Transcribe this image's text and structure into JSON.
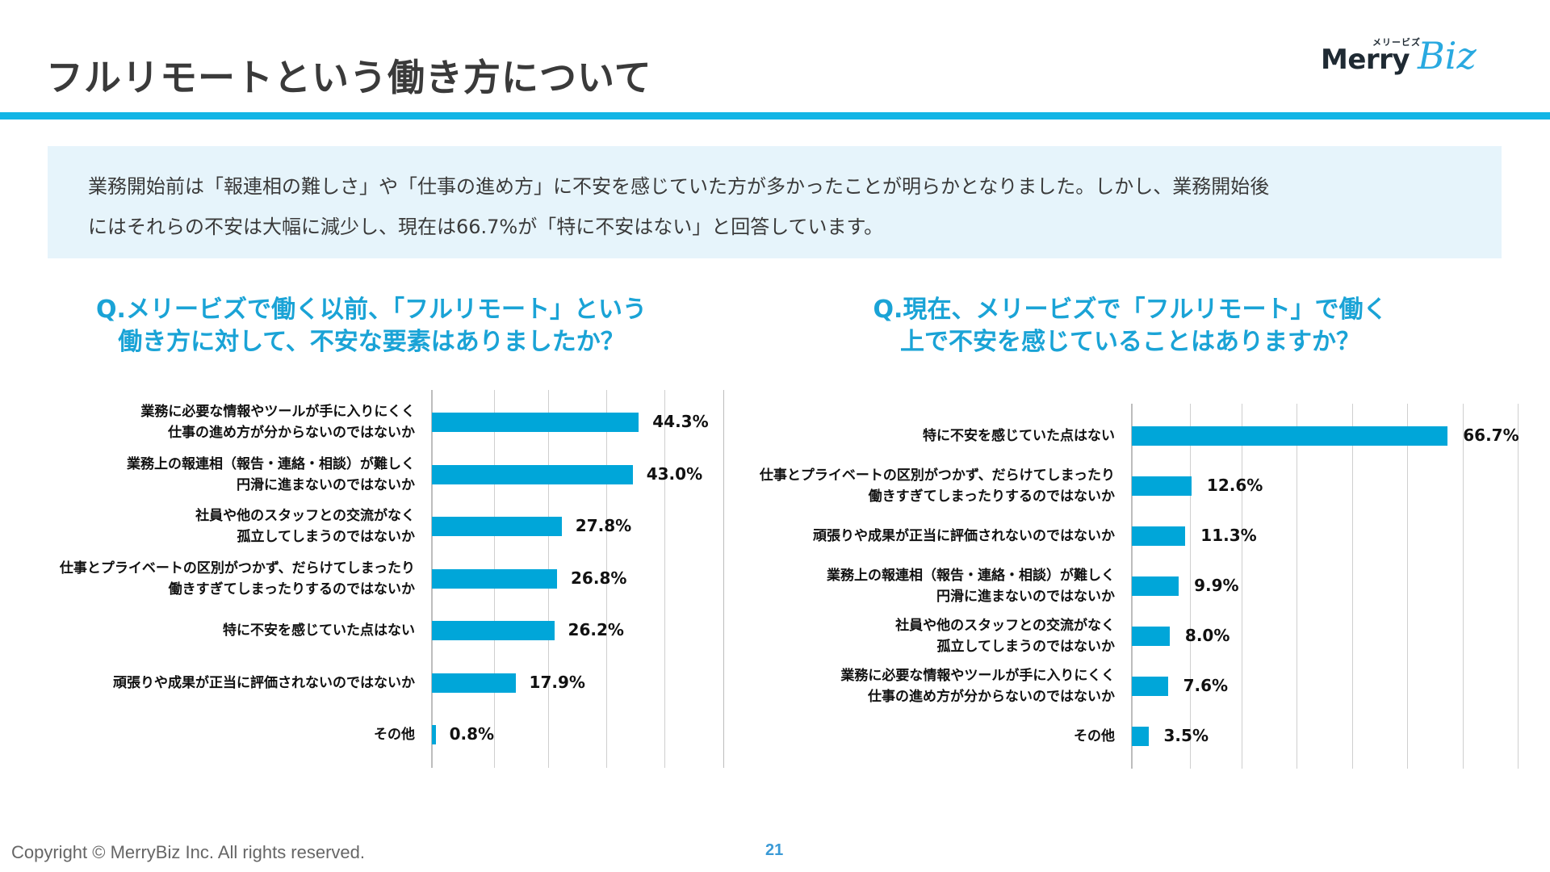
{
  "header": {
    "title": "フルリモートという働き方について",
    "logo": {
      "kana": "メリービズ",
      "wordmark_main": "Merry",
      "wordmark_accent": "Biz"
    }
  },
  "colors": {
    "accent": "#12b5e6",
    "bar": "#00a6d9",
    "question": "#1aa3d6",
    "summary_bg": "#e6f4fb"
  },
  "summary": {
    "line1": "業務開始前は「報連相の難しさ」や「仕事の進め方」に不安を感じていた方が多かったことが明らかとなりました。しかし、業務開始後",
    "line2": "にはそれらの不安は大幅に減少し、現在は66.7%が「特に不安はない」と回答しています。"
  },
  "chart_data": [
    {
      "type": "bar",
      "orientation": "horizontal",
      "title": "Q.メリービズで働く以前、「フルリモート」という働き方に対して、不安な要素はありましたか？",
      "title_lines": [
        "Q.メリービズで働く以前、「フルリモート」という",
        "働き方に対して、不安な要素はありましたか？"
      ],
      "categories": [
        [
          "業務に必要な情報やツールが手に入りにくく",
          "仕事の進め方が分からないのではないか"
        ],
        [
          "業務上の報連相（報告・連絡・相談）が難しく",
          "円滑に進まないのではないか"
        ],
        [
          "社員や他のスタッフとの交流がなく",
          "孤立してしまうのではないか"
        ],
        [
          "仕事とプライベートの区別がつかず、だらけてしまったり",
          "働きすぎてしまったりするのではないか"
        ],
        [
          "特に不安を感じていた点はない"
        ],
        [
          "頑張りや成果が正当に評価されないのではないか"
        ],
        [
          "その他"
        ]
      ],
      "values": [
        44.3,
        43.0,
        27.8,
        26.8,
        26.2,
        17.9,
        0.8
      ],
      "value_labels": [
        "44.3%",
        "43.0%",
        "27.8%",
        "26.8%",
        "26.2%",
        "17.9%",
        "0.8%"
      ],
      "xlim": [
        0,
        51
      ],
      "gridlines": [
        0,
        13.5,
        25,
        37.5,
        50
      ],
      "grid": true,
      "xlabel": "",
      "ylabel": "",
      "legend": "none"
    },
    {
      "type": "bar",
      "orientation": "horizontal",
      "title": "Q.現在、メリービズで「フルリモート」で働く上で不安を感じていることはありますか？",
      "title_lines": [
        "Q.現在、メリービズで「フルリモート」で働く",
        "上で不安を感じていることはありますか？"
      ],
      "categories": [
        [
          "特に不安を感じていた点はない"
        ],
        [
          "仕事とプライベートの区別がつかず、だらけてしまったり",
          "働きすぎてしまったりするのではないか"
        ],
        [
          "頑張りや成果が正当に評価されないのではないか"
        ],
        [
          "業務上の報連相（報告・連絡・相談）が難しく",
          "円滑に進まないのではないか"
        ],
        [
          "社員や他のスタッフとの交流がなく",
          "孤立してしまうのではないか"
        ],
        [
          "業務に必要な情報やツールが手に入りにくく",
          "仕事の進め方が分からないのではないか"
        ],
        [
          "その他"
        ]
      ],
      "values": [
        66.7,
        12.6,
        11.3,
        9.9,
        8.0,
        7.6,
        3.5
      ],
      "value_labels": [
        "66.7%",
        "12.6%",
        "11.3%",
        "9.9%",
        "8.0%",
        "7.6%",
        "3.5%"
      ],
      "xlim": [
        0,
        82
      ],
      "gridlines": [
        0,
        12.5,
        23.3,
        35,
        46.7,
        58.3,
        70,
        81.7
      ],
      "grid": true,
      "xlabel": "",
      "ylabel": "",
      "legend": "none"
    }
  ],
  "footer": {
    "copyright": "Copyright © MerryBiz Inc. All rights reserved.",
    "page_number": "21"
  }
}
